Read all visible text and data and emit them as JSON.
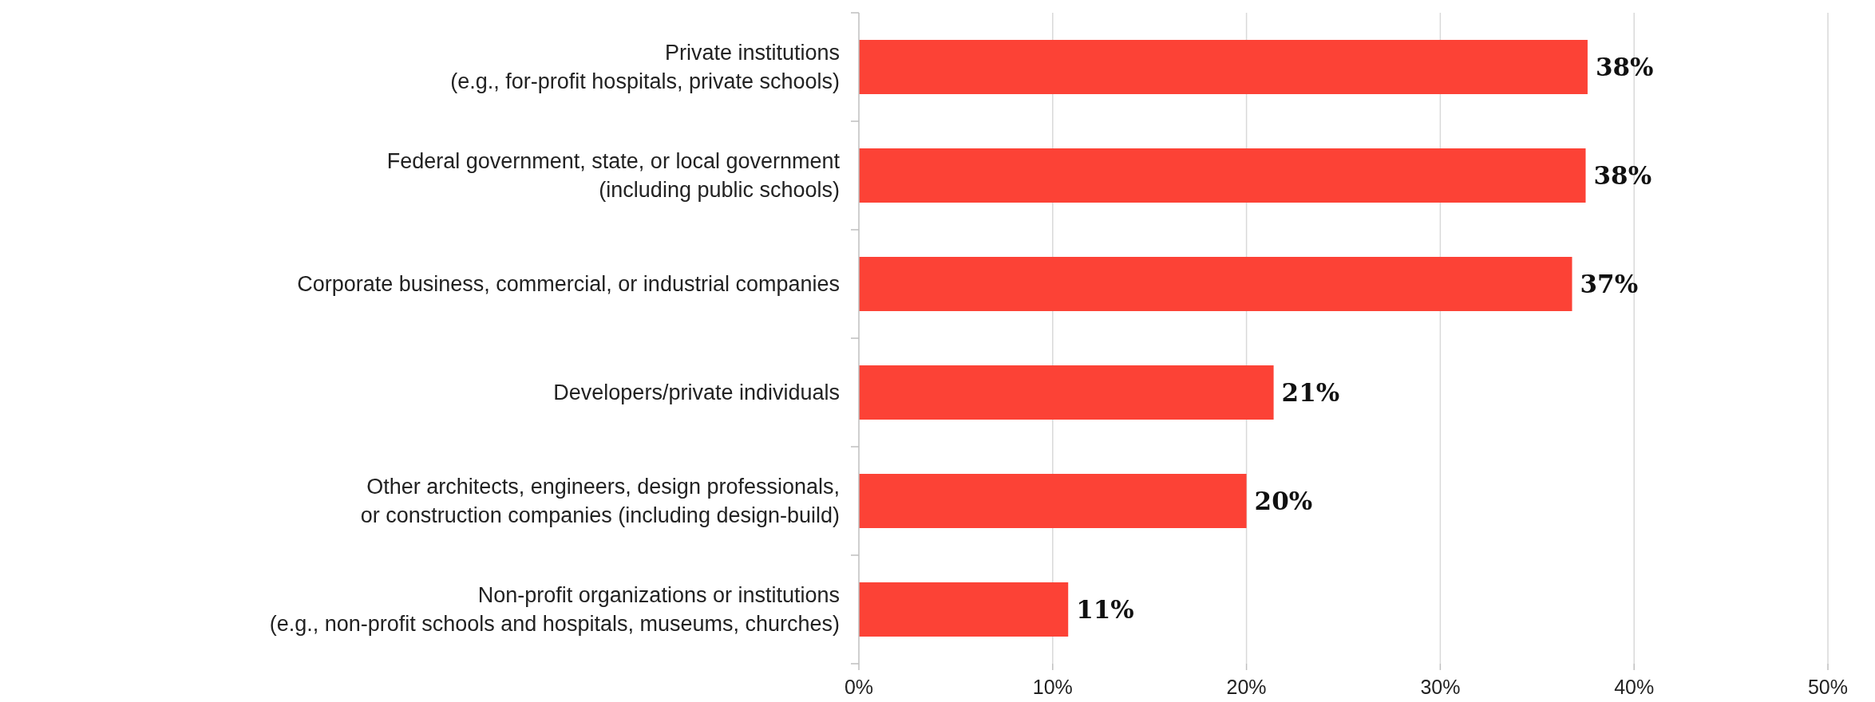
{
  "chart_data": {
    "type": "bar",
    "orientation": "horizontal",
    "categories": [
      "Private institutions\n(e.g., for-profit hospitals, private schools)",
      "Federal government, state, or local government\n(including public schools)",
      "Corporate business, commercial, or industrial companies",
      "Developers/private individuals",
      "Other architects, engineers, design professionals,\nor construction companies (including design-build)",
      "Non-profit organizations or institutions\n(e.g., non-profit schools and hospitals, museums, churches)"
    ],
    "values": [
      37.6,
      37.5,
      36.8,
      21.4,
      20,
      10.8
    ],
    "value_labels": [
      "38%",
      "38%",
      "37%",
      "21%",
      "20%",
      "11%"
    ],
    "color": "#fc4236",
    "xlim": [
      0,
      50
    ],
    "xticks": [
      {
        "value": 0,
        "label": "0%"
      },
      {
        "value": 10,
        "label": "10%"
      },
      {
        "value": 20,
        "label": "20%"
      },
      {
        "value": 30,
        "label": "30%"
      },
      {
        "value": 40,
        "label": "40%"
      },
      {
        "value": 50,
        "label": "50%"
      }
    ],
    "grid": "x"
  }
}
